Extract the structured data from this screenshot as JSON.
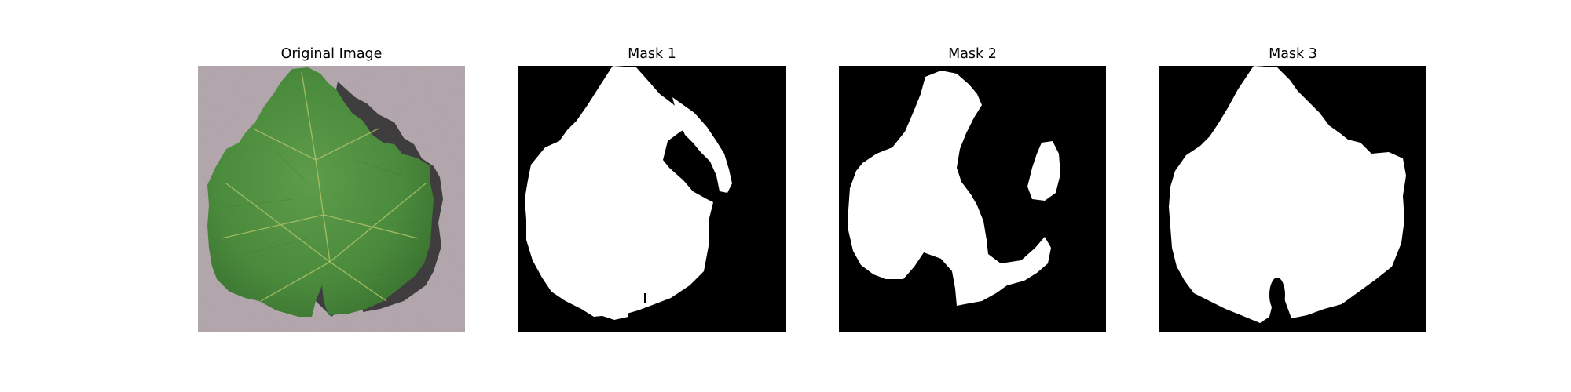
{
  "figure": {
    "panels": [
      {
        "title": "Original Image"
      },
      {
        "title": "Mask 1"
      },
      {
        "title": "Mask 2"
      },
      {
        "title": "Mask 3"
      }
    ]
  },
  "colors": {
    "background": "#ffffff",
    "mask_background": "#000000",
    "mask_foreground": "#ffffff",
    "photo_background": "#b9adb3",
    "leaf_green": "#4a8a3c"
  },
  "icons": {
    "leaf": "leaf-photo"
  }
}
